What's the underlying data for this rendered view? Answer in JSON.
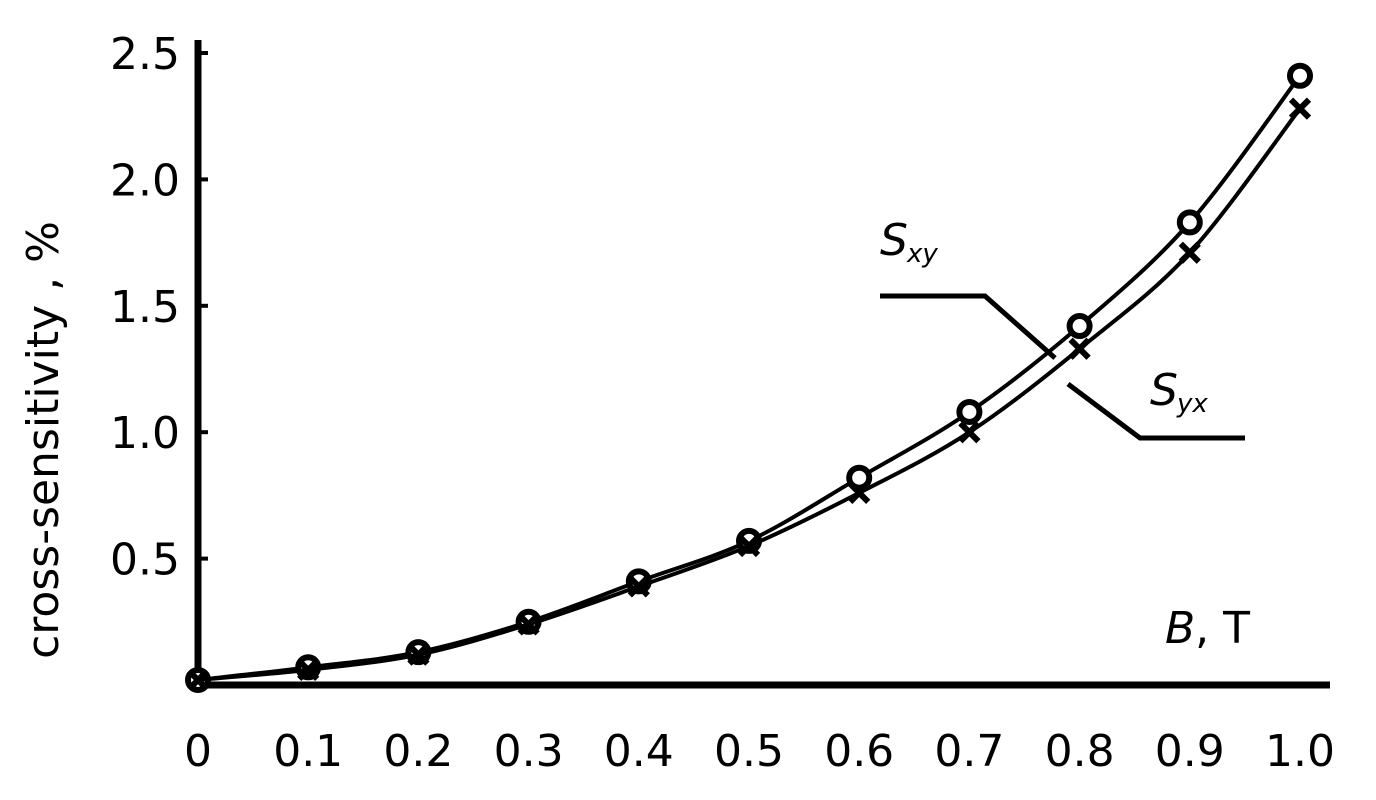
{
  "chart_data": {
    "type": "line",
    "title": "",
    "xlabel": "B, T",
    "ylabel": "cross-sensitivity , %",
    "x": [
      0,
      0.1,
      0.2,
      0.3,
      0.4,
      0.5,
      0.6,
      0.7,
      0.8,
      0.9,
      1.0
    ],
    "x_ticks": [
      "0",
      "0.1",
      "0.2",
      "0.3",
      "0.4",
      "0.5",
      "0.6",
      "0.7",
      "0.8",
      "0.9",
      "1.0"
    ],
    "y_ticks": [
      "0.5",
      "1.0",
      "1.5",
      "2.0",
      "2.5"
    ],
    "y_tick_values": [
      0.5,
      1.0,
      1.5,
      2.0,
      2.5
    ],
    "xlim": [
      0,
      1.0
    ],
    "ylim": [
      0,
      2.5
    ],
    "grid": false,
    "series": [
      {
        "name": "S_xy",
        "label_main": "S",
        "label_sub": "xy",
        "marker": "circle",
        "values": [
          0.02,
          0.07,
          0.13,
          0.25,
          0.41,
          0.57,
          0.82,
          1.08,
          1.42,
          1.83,
          2.41
        ]
      },
      {
        "name": "S_yx",
        "label_main": "S",
        "label_sub": "yx",
        "marker": "cross",
        "values": [
          0.02,
          0.06,
          0.12,
          0.24,
          0.39,
          0.55,
          0.76,
          1.0,
          1.33,
          1.71,
          2.28
        ]
      }
    ]
  }
}
